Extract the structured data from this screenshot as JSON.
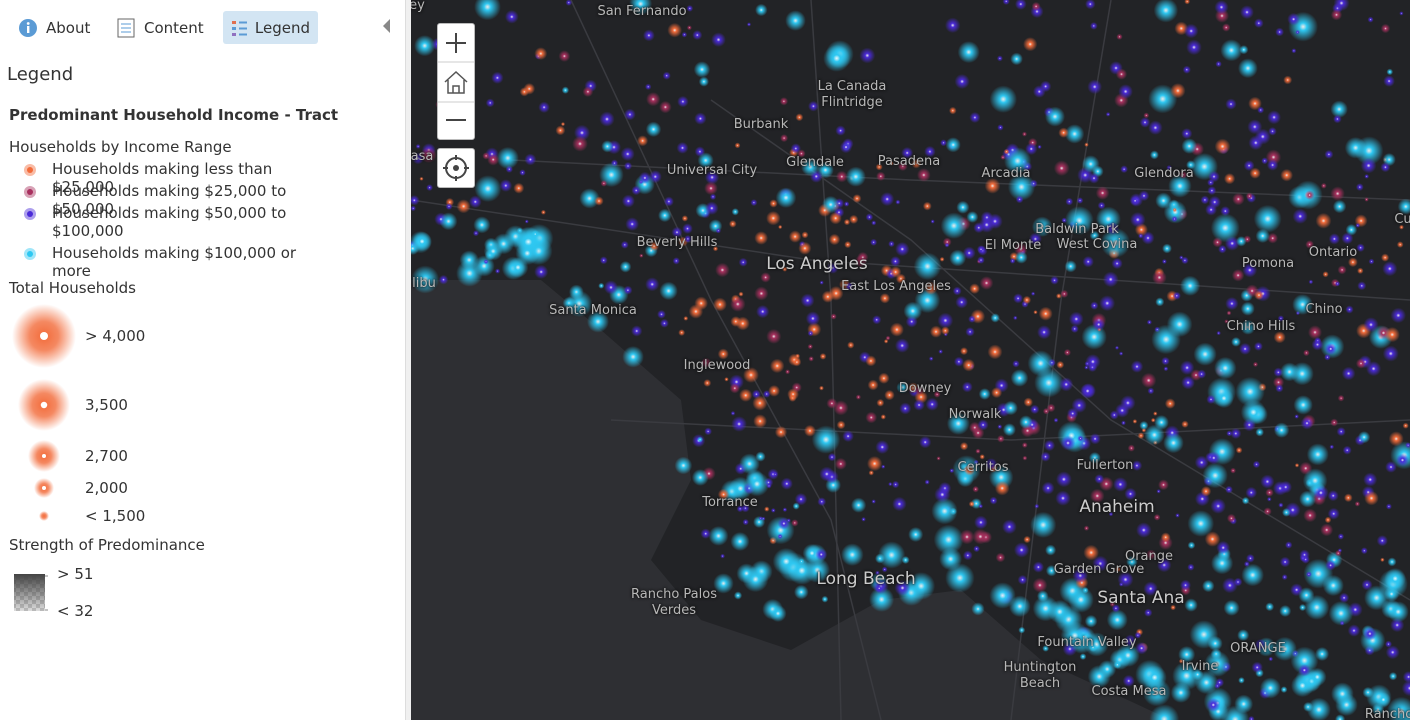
{
  "tabs": [
    "About",
    "Content",
    "Legend"
  ],
  "panel_title": "Legend",
  "layer_title": "Predominant Household Income - Tract",
  "income": {
    "title": "Households by Income Range",
    "items": [
      {
        "label": "Households making less than $25,000",
        "color": "#f26b3a"
      },
      {
        "label": "Households making $25,000 to $50,000",
        "color": "#a8305e"
      },
      {
        "label": "Households making $50,000 to $100,000",
        "color": "#4a2ad8"
      },
      {
        "label": "Households making $100,000 or more",
        "color": "#2ec8f2"
      }
    ]
  },
  "size": {
    "title": "Total Households",
    "items": [
      "> 4,000",
      "3,500",
      "2,700",
      "2,000",
      "< 1,500"
    ]
  },
  "strength": {
    "title": "Strength of Predominance",
    "max": "> 51",
    "min": "< 32"
  },
  "map_labels": [
    "ey",
    "San Fernando",
    "La Canada Flintridge",
    "Burbank",
    "asa",
    "Glendale",
    "Pasadena",
    "Universal City",
    "Arcadia",
    "Glendora",
    "Baldwin Park",
    "West Covina",
    "El Monte",
    "Beverly Hills",
    "Los Angeles",
    "East Los Angeles",
    "Pomona",
    "Ontario",
    "Cu",
    "libu",
    "Chino",
    "Chino Hills",
    "Santa Monica",
    "Inglewood",
    "Downey",
    "Norwalk",
    "Cerritos",
    "Fullerton",
    "Anaheim",
    "Torrance",
    "Orange",
    "Garden Grove",
    "Long Beach",
    "Santa Ana",
    "Rancho Palos Verdes",
    "Fountain Valley",
    "ORANGE",
    "Irvine",
    "Huntington Beach",
    "Costa Mesa",
    "Rancho"
  ]
}
